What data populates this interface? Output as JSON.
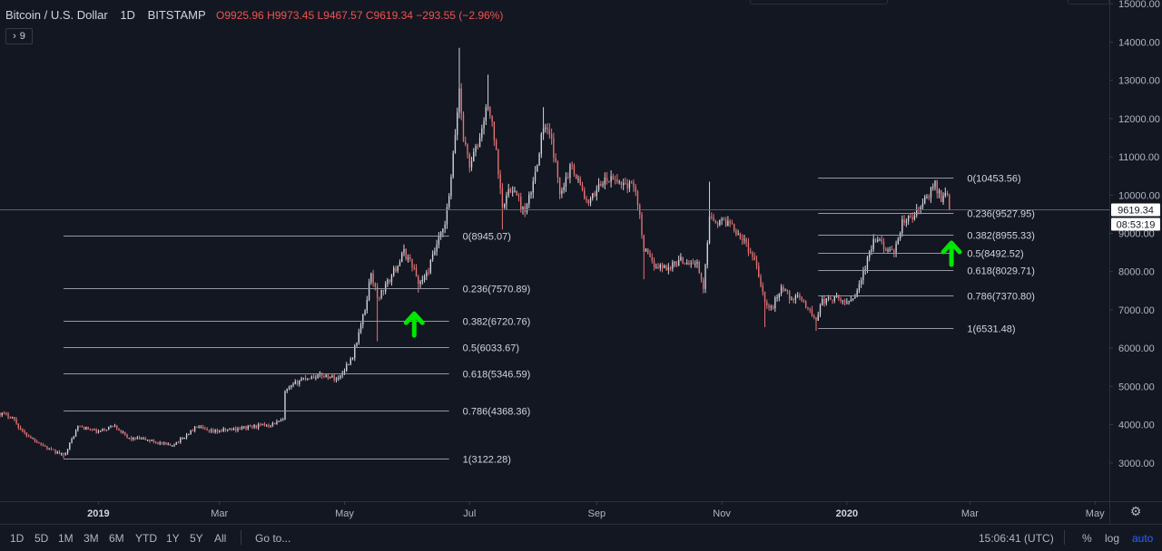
{
  "header": {
    "title": "Bitcoin / U.S. Dollar",
    "interval": "1D",
    "exchange": "BITSTAMP",
    "open": "O9925.96",
    "high": "H9973.45",
    "low": "L9467.57",
    "close": "C9619.34",
    "change": "−293.55 (−2.96%)"
  },
  "indicator_badge": {
    "chevron": "›",
    "count": "9"
  },
  "price_label": {
    "price": "9619.34",
    "countdown": "08:53:19"
  },
  "bottom_toolbar": {
    "ranges": [
      "1D",
      "5D",
      "1M",
      "3M",
      "6M",
      "YTD",
      "1Y",
      "5Y",
      "All"
    ],
    "goto": "Go to...",
    "clock": "15:06:41 (UTC)",
    "percent": "%",
    "log": "log",
    "auto": "auto"
  },
  "colors": {
    "background": "#131722",
    "up": "#d1d4dc",
    "down": "#e57373",
    "fib_line": "#9598a1",
    "arrow": "#00e600",
    "text": "#d1d4dc"
  },
  "chart_data": {
    "type": "candlestick",
    "title": "Bitcoin / U.S. Dollar",
    "y_ticks": [
      3000,
      4000,
      5000,
      6000,
      7000,
      8000,
      9000,
      10000,
      11000,
      12000,
      13000,
      14000,
      15000
    ],
    "y_tick_labels": [
      "3000.00",
      "4000.00",
      "5000.00",
      "6000.00",
      "7000.00",
      "8000.00",
      "9000.00",
      "10000.00",
      "11000.00",
      "12000.00",
      "13000.00",
      "14000.00",
      "15000.00"
    ],
    "ylim": [
      2000,
      15100
    ],
    "x_ticks": [
      "2019",
      "Mar",
      "May",
      "Jul",
      "Sep",
      "Nov",
      "2020",
      "Mar",
      "May"
    ],
    "x_tick_dates": [
      "2019-01-01",
      "2019-03-01",
      "2019-05-01",
      "2019-07-01",
      "2019-09-01",
      "2019-11-01",
      "2020-01-01",
      "2020-03-01",
      "2020-05-01"
    ],
    "x_range": [
      "2018-11-14",
      "2020-05-08"
    ],
    "last_price": 9619.34,
    "grid": false,
    "price_path": [
      [
        "2018-11-14",
        4300
      ],
      [
        "2018-11-20",
        4200
      ],
      [
        "2018-11-25",
        3800
      ],
      [
        "2018-12-01",
        3600
      ],
      [
        "2018-12-08",
        3350
      ],
      [
        "2018-12-15",
        3200
      ],
      [
        "2018-12-18",
        3500
      ],
      [
        "2018-12-22",
        3950
      ],
      [
        "2018-12-26",
        3900
      ],
      [
        "2019-01-01",
        3800
      ],
      [
        "2019-01-09",
        4000
      ],
      [
        "2019-01-15",
        3650
      ],
      [
        "2019-01-25",
        3600
      ],
      [
        "2019-02-05",
        3450
      ],
      [
        "2019-02-10",
        3600
      ],
      [
        "2019-02-18",
        3950
      ],
      [
        "2019-02-24",
        3800
      ],
      [
        "2019-03-10",
        3900
      ],
      [
        "2019-03-25",
        4000
      ],
      [
        "2019-04-01",
        4100
      ],
      [
        "2019-04-02",
        4850
      ],
      [
        "2019-04-10",
        5200
      ],
      [
        "2019-04-20",
        5300
      ],
      [
        "2019-04-28",
        5200
      ],
      [
        "2019-05-05",
        5800
      ],
      [
        "2019-05-11",
        7000
      ],
      [
        "2019-05-14",
        8000
      ],
      [
        "2019-05-17",
        7300
      ],
      [
        "2019-05-22",
        7700
      ],
      [
        "2019-05-26",
        8100
      ],
      [
        "2019-05-30",
        8500
      ],
      [
        "2019-06-03",
        8200
      ],
      [
        "2019-06-06",
        7700
      ],
      [
        "2019-06-10",
        7900
      ],
      [
        "2019-06-15",
        8700
      ],
      [
        "2019-06-19",
        9200
      ],
      [
        "2019-06-22",
        10400
      ],
      [
        "2019-06-26",
        12800
      ],
      [
        "2019-06-28",
        11500
      ],
      [
        "2019-07-01",
        10800
      ],
      [
        "2019-07-05",
        11300
      ],
      [
        "2019-07-10",
        12400
      ],
      [
        "2019-07-13",
        11500
      ],
      [
        "2019-07-17",
        9800
      ],
      [
        "2019-07-22",
        10200
      ],
      [
        "2019-07-28",
        9500
      ],
      [
        "2019-08-01",
        10300
      ],
      [
        "2019-08-06",
        11800
      ],
      [
        "2019-08-10",
        11400
      ],
      [
        "2019-08-14",
        10100
      ],
      [
        "2019-08-20",
        10800
      ],
      [
        "2019-08-28",
        9700
      ],
      [
        "2019-09-02",
        10300
      ],
      [
        "2019-09-08",
        10400
      ],
      [
        "2019-09-15",
        10300
      ],
      [
        "2019-09-20",
        10200
      ],
      [
        "2019-09-24",
        8600
      ],
      [
        "2019-09-28",
        8200
      ],
      [
        "2019-10-05",
        8100
      ],
      [
        "2019-10-12",
        8300
      ],
      [
        "2019-10-20",
        8200
      ],
      [
        "2019-10-23",
        7500
      ],
      [
        "2019-10-26",
        9500
      ],
      [
        "2019-10-30",
        9300
      ],
      [
        "2019-11-05",
        9300
      ],
      [
        "2019-11-12",
        8800
      ],
      [
        "2019-11-18",
        8200
      ],
      [
        "2019-11-22",
        7200
      ],
      [
        "2019-11-25",
        7000
      ],
      [
        "2019-11-30",
        7600
      ],
      [
        "2019-12-05",
        7300
      ],
      [
        "2019-12-10",
        7300
      ],
      [
        "2019-12-17",
        6700
      ],
      [
        "2019-12-19",
        7200
      ],
      [
        "2019-12-25",
        7300
      ],
      [
        "2020-01-01",
        7200
      ],
      [
        "2020-01-05",
        7400
      ],
      [
        "2020-01-10",
        8100
      ],
      [
        "2020-01-14",
        8800
      ],
      [
        "2020-01-19",
        8700
      ],
      [
        "2020-01-24",
        8400
      ],
      [
        "2020-01-28",
        9300
      ],
      [
        "2020-02-02",
        9400
      ],
      [
        "2020-02-06",
        9700
      ],
      [
        "2020-02-10",
        10000
      ],
      [
        "2020-02-13",
        10300
      ],
      [
        "2020-02-16",
        9900
      ],
      [
        "2020-02-19",
        10100
      ],
      [
        "2020-02-20",
        9619.34
      ]
    ],
    "wick_extremes": [
      [
        "2019-06-26",
        13850
      ],
      [
        "2019-05-17",
        6180
      ],
      [
        "2019-10-26",
        10350
      ],
      [
        "2019-12-17",
        6450
      ],
      [
        "2019-07-10",
        13150
      ],
      [
        "2019-07-17",
        9100
      ],
      [
        "2019-08-06",
        12300
      ],
      [
        "2018-12-15",
        3120
      ],
      [
        "2019-05-22",
        7600
      ],
      [
        "2019-06-06",
        7450
      ],
      [
        "2019-09-24",
        7800
      ],
      [
        "2019-11-22",
        6550
      ]
    ],
    "fib_sets": [
      {
        "x_start": "2018-12-15",
        "x_end": "2019-06-21",
        "levels": [
          {
            "label": "0(8945.07)",
            "price": 8945.07
          },
          {
            "label": "0.236(7570.89)",
            "price": 7570.89
          },
          {
            "label": "0.382(6720.76)",
            "price": 6720.76
          },
          {
            "label": "0.5(6033.67)",
            "price": 6033.67
          },
          {
            "label": "0.618(5346.59)",
            "price": 5346.59
          },
          {
            "label": "0.786(4368.36)",
            "price": 4368.36
          },
          {
            "label": "1(3122.28)",
            "price": 3122.28
          }
        ]
      },
      {
        "x_start": "2019-12-18",
        "x_end": "2020-02-22",
        "levels": [
          {
            "label": "0(10453.56)",
            "price": 10453.56
          },
          {
            "label": "0.236(9527.95)",
            "price": 9527.95
          },
          {
            "label": "0.382(8955.33)",
            "price": 8955.33
          },
          {
            "label": "0.5(8492.52)",
            "price": 8492.52
          },
          {
            "label": "0.618(8029.71)",
            "price": 8029.71
          },
          {
            "label": "0.786(7370.80)",
            "price": 7370.8
          },
          {
            "label": "1(6531.48)",
            "price": 6531.48
          }
        ]
      }
    ],
    "annotations": [
      {
        "type": "arrow-up",
        "date": "2019-06-04",
        "price": 6900
      },
      {
        "type": "arrow-up",
        "date": "2020-02-21",
        "price": 8750
      }
    ]
  }
}
